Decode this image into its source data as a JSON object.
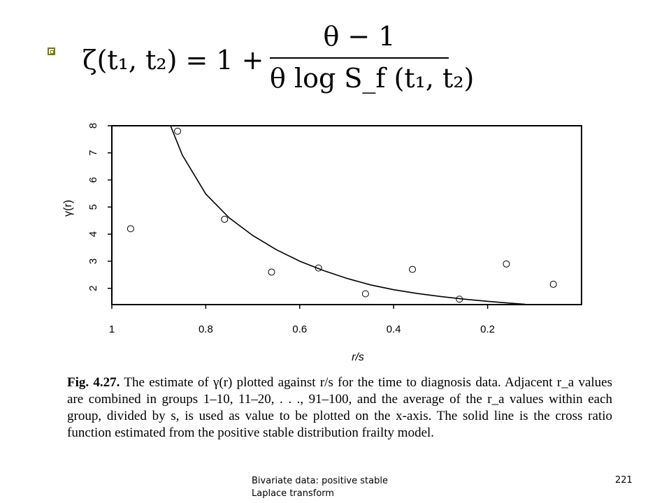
{
  "slide": {
    "formula": {
      "lhs": "ζ(t₁, t₂) = 1 +",
      "numerator": "θ − 1",
      "denominator": "θ log S_f (t₁, t₂)"
    },
    "caption": {
      "fig_label": "Fig. 4.27.",
      "text": "The estimate of γ(r) plotted against r/s for the time to diagnosis data. Adjacent r_a values are combined in groups 1–10, 11–20, . . ., 91–100, and the average of the r_a values within each group, divided by s, is used as value to be plotted on the x-axis. The solid line is the cross ratio function estimated from the positive stable distribution frailty model."
    },
    "footer": {
      "title_line1": "Bivariate data: positive stable",
      "title_line2": "Laplace transform",
      "page_number": "221"
    },
    "colors": {
      "bullet": "#7a7a00"
    }
  },
  "chart_data": {
    "type": "scatter",
    "xlabel": "r/s",
    "ylabel": "γ(r)",
    "x_reversed": true,
    "xlim": [
      1.0,
      0.0
    ],
    "ylim": [
      1.4,
      8.0
    ],
    "xticks": [
      1,
      0.8,
      0.6,
      0.4,
      0.2
    ],
    "xtick_labels": [
      "1",
      "0.8",
      "0.6",
      "0.4",
      "0.2"
    ],
    "yticks": [
      2,
      3,
      4,
      5,
      6,
      7,
      8
    ],
    "ytick_labels": [
      "2",
      "3",
      "4",
      "5",
      "6",
      "7",
      "8"
    ],
    "points": {
      "x": [
        0.96,
        0.86,
        0.76,
        0.66,
        0.56,
        0.46,
        0.36,
        0.26,
        0.16,
        0.06
      ],
      "y": [
        4.2,
        7.8,
        4.55,
        2.6,
        2.75,
        1.8,
        2.7,
        1.6,
        2.9,
        2.15
      ]
    },
    "curve": {
      "x": [
        0.875,
        0.85,
        0.8,
        0.75,
        0.7,
        0.65,
        0.6,
        0.55,
        0.5,
        0.45,
        0.4,
        0.35,
        0.3,
        0.25,
        0.2,
        0.15,
        0.12
      ],
      "y": [
        8.0,
        6.92,
        5.48,
        4.6,
        3.95,
        3.43,
        3.0,
        2.66,
        2.37,
        2.13,
        1.95,
        1.81,
        1.7,
        1.6,
        1.52,
        1.45,
        1.41
      ]
    }
  }
}
